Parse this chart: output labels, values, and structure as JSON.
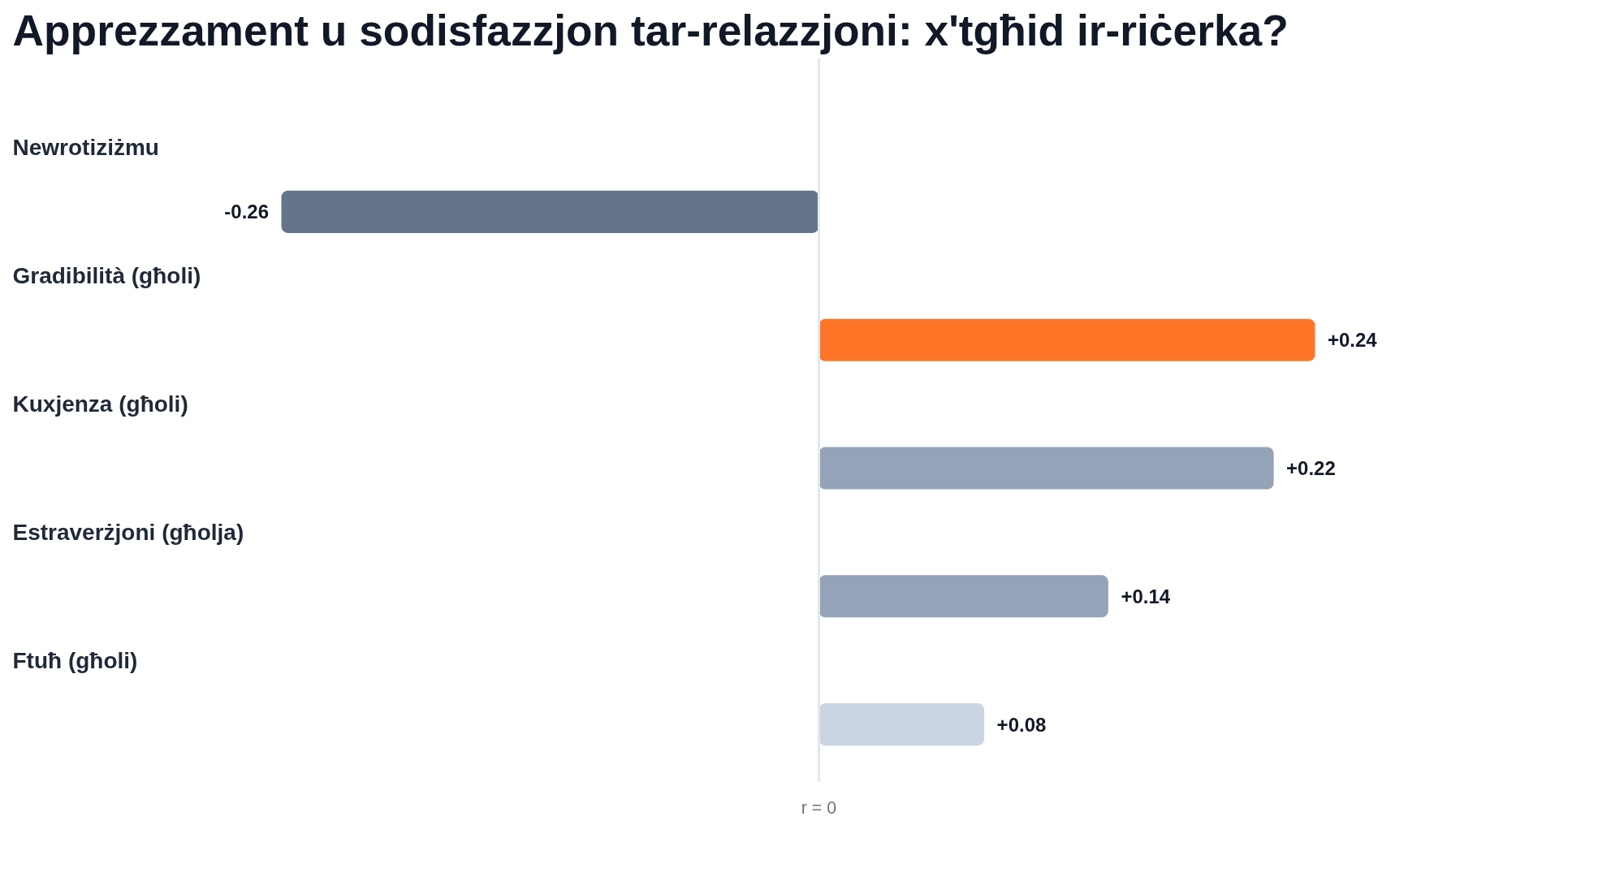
{
  "chart_data": {
    "type": "bar",
    "orientation": "horizontal",
    "title": "Apprezzament u sodisfazzjon tar-relazzjoni: x'tgħid ir-riċerka?",
    "categories": [
      "Newrotiziżmu",
      "Gradibilità (għoli)",
      "Kuxjenza (għoli)",
      "Estraverżjoni (għolja)",
      "Ftuħ (għoli)"
    ],
    "values": [
      -0.26,
      0.24,
      0.22,
      0.14,
      0.08
    ],
    "colors": [
      "#64748b",
      "#ff7426",
      "#94a3b8",
      "#94a3b8",
      "#cbd5e1"
    ],
    "value_labels": [
      "-0.26",
      "+0.24",
      "+0.22",
      "+0.14",
      "+0.08"
    ],
    "ref_lines": [
      {
        "axis": "x",
        "value": 0,
        "label": "r = 0",
        "color": "#e2e8f0"
      }
    ]
  }
}
